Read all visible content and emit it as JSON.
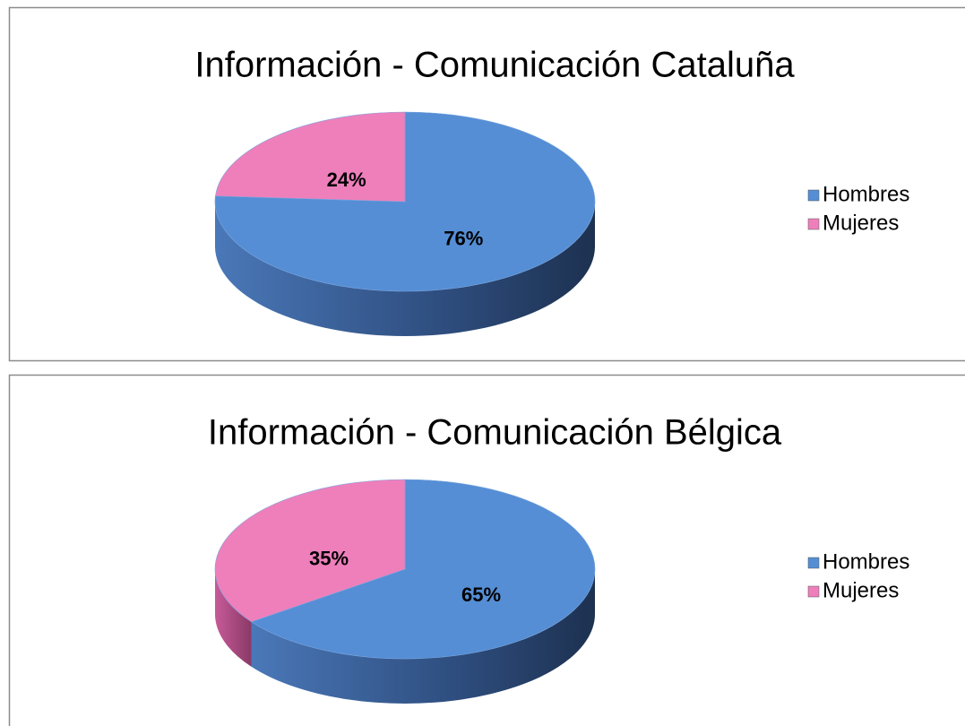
{
  "chart_data": [
    {
      "type": "pie",
      "title": "Información - Comunicación Cataluña",
      "categories": [
        "Hombres",
        "Mujeres"
      ],
      "values": [
        76,
        24
      ],
      "value_labels": [
        "76%",
        "24%"
      ],
      "colors": [
        "#558ed5",
        "#ee7fbb"
      ],
      "legend": "right"
    },
    {
      "type": "pie",
      "title": "Información - Comunicación Bélgica",
      "categories": [
        "Hombres",
        "Mujeres"
      ],
      "values": [
        65,
        35
      ],
      "value_labels": [
        "65%",
        "35%"
      ],
      "colors": [
        "#558ed5",
        "#ee7fbb"
      ],
      "legend": "right"
    }
  ]
}
